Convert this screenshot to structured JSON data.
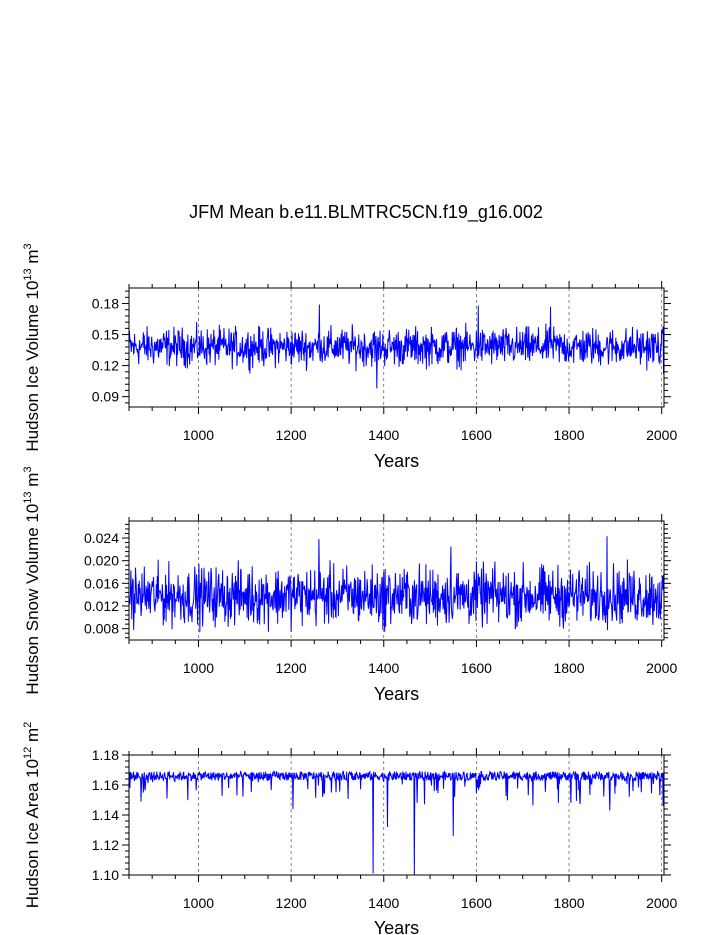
{
  "figure": {
    "title": "JFM Mean b.e11.BLMTRC5CN.f19_g16.002"
  },
  "chart_data": [
    {
      "type": "line",
      "ylabel": "Hudson Ice Volume 10",
      "ylabel_sup": "13",
      "ylabel_unit": "m",
      "ylabel_unit_sup": "3",
      "xlabel": "Years",
      "xlim": [
        850,
        2005
      ],
      "ylim": [
        0.08,
        0.195
      ],
      "xticks": [
        1000,
        1200,
        1400,
        1600,
        1800,
        2000
      ],
      "xtick_labels": [
        "1000",
        "1200",
        "1400",
        "1600",
        "1800",
        "2000"
      ],
      "yticks": [
        0.09,
        0.12,
        0.15,
        0.18
      ],
      "ytick_labels": [
        "0.09",
        "0.12",
        "0.15",
        "0.18"
      ],
      "x_grid": "dashed at major x ticks",
      "series": [
        {
          "name": "Hudson Ice Volume",
          "color": "#0000ff",
          "approx_mean": 0.138,
          "approx_amplitude": 0.01,
          "notable_points": [
            [
              1261,
              0.179
            ],
            [
              1385,
              0.098
            ],
            [
              1604,
              0.178
            ],
            [
              1760,
              0.177
            ],
            [
              2004,
              0.112
            ]
          ]
        }
      ]
    },
    {
      "type": "line",
      "ylabel": "Hudson Snow Volume 10",
      "ylabel_sup": "13",
      "ylabel_unit": "m",
      "ylabel_unit_sup": "3",
      "xlabel": "Years",
      "xlim": [
        850,
        2005
      ],
      "ylim": [
        0.006,
        0.027
      ],
      "xticks": [
        1000,
        1200,
        1400,
        1600,
        1800,
        2000
      ],
      "xtick_labels": [
        "1000",
        "1200",
        "1400",
        "1600",
        "1800",
        "2000"
      ],
      "yticks": [
        0.008,
        0.012,
        0.016,
        0.02,
        0.024
      ],
      "ytick_labels": [
        "0.008",
        "0.012",
        "0.016",
        "0.020",
        "0.024"
      ],
      "x_grid": "dashed at major x ticks",
      "series": [
        {
          "name": "Hudson Snow Volume",
          "color": "#0000ff",
          "approx_mean": 0.0138,
          "approx_amplitude": 0.0028,
          "notable_points": [
            [
              1260,
              0.0238
            ],
            [
              1882,
              0.0243
            ],
            [
              1398,
              0.0078
            ],
            [
              1545,
              0.0225
            ]
          ]
        }
      ]
    },
    {
      "type": "line",
      "ylabel": "Hudson Ice Area 10",
      "ylabel_sup": "12",
      "ylabel_unit": "m",
      "ylabel_unit_sup": "2",
      "xlabel": "Years",
      "xlim": [
        850,
        2005
      ],
      "ylim": [
        1.1,
        1.18
      ],
      "xticks": [
        1000,
        1200,
        1400,
        1600,
        1800,
        2000
      ],
      "xtick_labels": [
        "1000",
        "1200",
        "1400",
        "1600",
        "1800",
        "2000"
      ],
      "yticks": [
        1.1,
        1.12,
        1.14,
        1.16,
        1.18
      ],
      "ytick_labels": [
        "1.10",
        "1.12",
        "1.14",
        "1.16",
        "1.18"
      ],
      "x_grid": "dashed at major x ticks",
      "series": [
        {
          "name": "Hudson Ice Area",
          "color": "#0000ff",
          "approx_mean": 1.166,
          "approx_amplitude": 0.003,
          "notable_points": [
            [
              1377,
              1.101
            ],
            [
              1466,
              1.1
            ],
            [
              1408,
              1.132
            ],
            [
              1550,
              1.126
            ],
            [
              1204,
              1.144
            ],
            [
              1888,
              1.143
            ],
            [
              2003,
              1.146
            ]
          ]
        }
      ]
    }
  ]
}
